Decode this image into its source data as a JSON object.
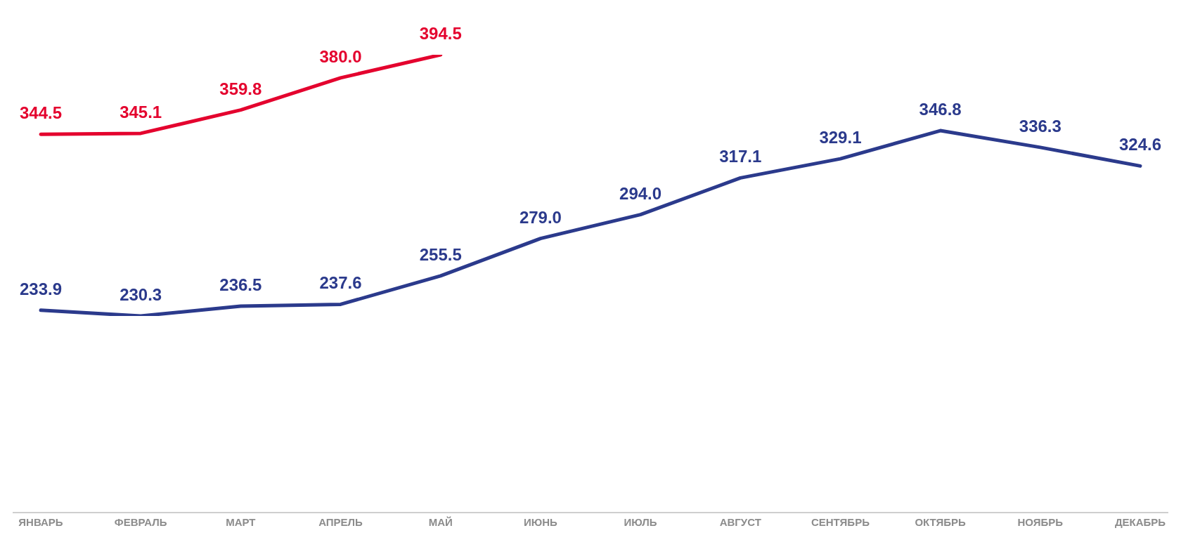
{
  "chart_data": {
    "type": "line",
    "categories": [
      "ЯНВАРЬ",
      "ФЕВРАЛЬ",
      "МАРТ",
      "АПРЕЛЬ",
      "МАЙ",
      "ИЮНЬ",
      "ИЮЛЬ",
      "АВГУСТ",
      "СЕНТЯБРЬ",
      "ОКТЯБРЬ",
      "НОЯБРЬ",
      "ДЕКАБРЬ"
    ],
    "series": [
      {
        "color": "#2b3a8c",
        "values": [
          233.9,
          230.3,
          236.5,
          237.6,
          255.5,
          279,
          294,
          317.1,
          329.1,
          346.8,
          336.3,
          324.6
        ],
        "value_labels": [
          "233.9",
          "230.3",
          "236.5",
          "237.6",
          "255.5",
          "279.0",
          "294.0",
          "317.1",
          "329.1",
          "346.8",
          "336.3",
          "324.6"
        ]
      },
      {
        "color": "#e4032e",
        "values": [
          344.5,
          345.1,
          359.8,
          380,
          394.5,
          null,
          null,
          null,
          null,
          null,
          null,
          null
        ],
        "value_labels": [
          "344.5",
          "345.1",
          "359.8",
          "380.0",
          "394.5",
          null,
          null,
          null,
          null,
          null,
          null,
          null
        ]
      }
    ],
    "grid": false,
    "legend": false,
    "marker": "none",
    "line_style": "solid",
    "tick_labels": "x"
  }
}
